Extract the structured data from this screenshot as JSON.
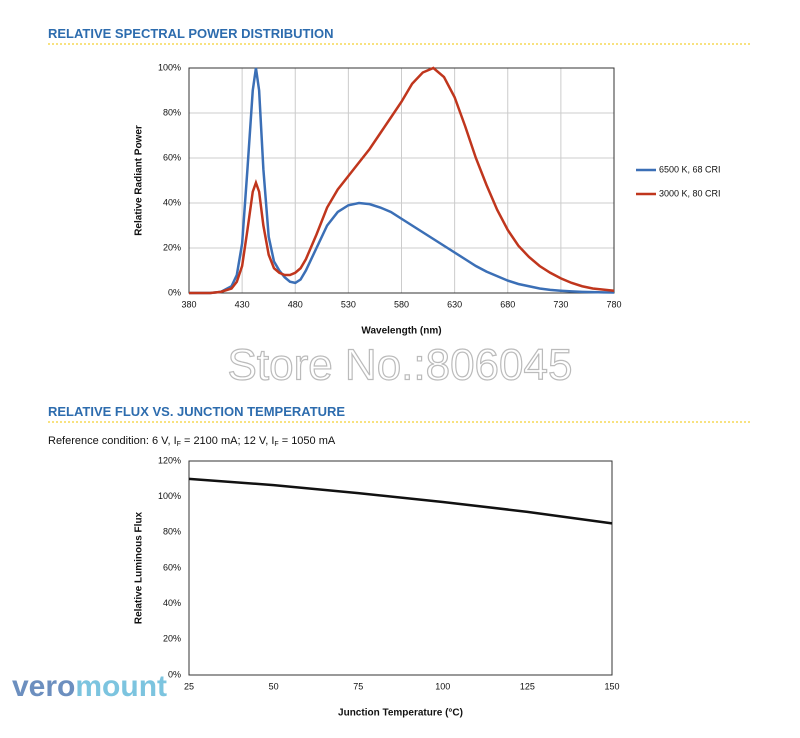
{
  "chart_data": [
    {
      "type": "line",
      "title": "RELATIVE SPECTRAL POWER DISTRIBUTION",
      "xlabel": "Wavelength (nm)",
      "ylabel": "Relative Radiant Power",
      "x": [
        380,
        400,
        410,
        420,
        425,
        430,
        435,
        440,
        443,
        446,
        450,
        455,
        460,
        465,
        470,
        475,
        480,
        485,
        490,
        500,
        510,
        520,
        530,
        540,
        550,
        560,
        570,
        580,
        590,
        600,
        610,
        620,
        630,
        640,
        650,
        660,
        670,
        680,
        690,
        700,
        710,
        720,
        730,
        740,
        750,
        760,
        770,
        780
      ],
      "series": [
        {
          "name": "6500 K, 68 CRI",
          "color": "#3b6fb6",
          "values": [
            0,
            0,
            0.5,
            3,
            8,
            22,
            55,
            90,
            100,
            90,
            55,
            25,
            14,
            10,
            7,
            5,
            4.5,
            6,
            10,
            20,
            30,
            36,
            39,
            40,
            39.5,
            38,
            36,
            33,
            30,
            27,
            24,
            21,
            18,
            15,
            12,
            9.5,
            7.5,
            5.5,
            4,
            3,
            2,
            1.4,
            1,
            0.7,
            0.5,
            0.4,
            0.3,
            0.2
          ]
        },
        {
          "name": "3000 K, 80 CRI",
          "color": "#c0361d",
          "values": [
            0,
            0,
            0.5,
            2,
            5,
            12,
            28,
            45,
            49,
            45,
            30,
            17,
            11,
            9,
            8,
            8,
            9,
            11,
            15,
            26,
            38,
            46,
            52,
            58,
            64,
            71,
            78,
            85,
            93,
            98,
            100,
            96,
            87,
            74,
            60,
            48,
            37,
            28,
            21,
            16,
            12,
            9,
            6.5,
            4.5,
            3,
            2,
            1.5,
            1
          ]
        }
      ],
      "xlim": [
        380,
        780
      ],
      "xticks": [
        380,
        430,
        480,
        530,
        580,
        630,
        680,
        730,
        780
      ],
      "ylim": [
        0,
        100
      ],
      "yticks": [
        {
          "value": 0,
          "label": "0%"
        },
        {
          "value": 20,
          "label": "20%"
        },
        {
          "value": 40,
          "label": "40%"
        },
        {
          "value": 60,
          "label": "60%"
        },
        {
          "value": 80,
          "label": "80%"
        },
        {
          "value": 100,
          "label": "100%"
        }
      ],
      "grid": true,
      "legend": "right"
    },
    {
      "type": "line",
      "title": "RELATIVE FLUX VS. JUNCTION TEMPERATURE",
      "subtitle": [
        "Reference condition: 6 V, I",
        "F",
        " = 2100 mA; 12 V, I",
        "F",
        " = 1050 mA"
      ],
      "xlabel": "Junction Temperature (°C)",
      "ylabel": "Relative Luminous Flux",
      "x": [
        25,
        50,
        75,
        100,
        125,
        150
      ],
      "values": [
        110,
        106.5,
        102,
        97,
        91.5,
        85
      ],
      "color": "#111111",
      "xlim": [
        25,
        150
      ],
      "xticks": [
        25,
        50,
        75,
        100,
        125,
        150
      ],
      "ylim": [
        0,
        120
      ],
      "yticks": [
        {
          "value": 0,
          "label": "0%"
        },
        {
          "value": 20,
          "label": "20%"
        },
        {
          "value": 40,
          "label": "40%"
        },
        {
          "value": 60,
          "label": "60%"
        },
        {
          "value": 80,
          "label": "80%"
        },
        {
          "value": 100,
          "label": "100%"
        },
        {
          "value": 120,
          "label": "120%"
        }
      ],
      "grid": false
    }
  ],
  "watermark": "Store No.:806045",
  "logo": [
    "vero",
    "mount"
  ]
}
